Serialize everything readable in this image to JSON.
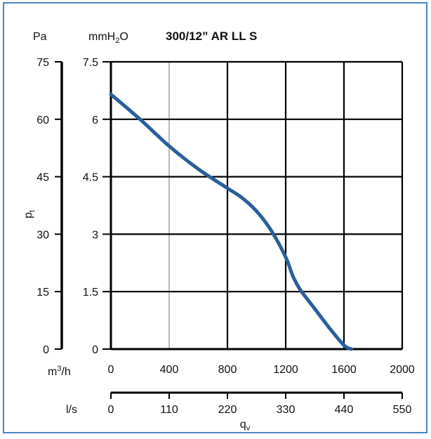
{
  "colors": {
    "frame": "#4a86c5",
    "curve": "#2a5e9c",
    "grid": "#000000",
    "thin_gridline": "#8a8a8a",
    "background": "#ffffff"
  },
  "chart_data": {
    "type": "line",
    "title": "300/12” AR LL S",
    "ylabel": "pt",
    "xlabel": "qv",
    "y_units_left": "Pa",
    "y_units_right": "mmH2O",
    "x_units_top": "m3/h",
    "x_units_bottom": "l/s",
    "xlim": [
      0,
      2000
    ],
    "ylim": [
      0,
      7.5
    ],
    "grid": true,
    "x_ticks_m3h": [
      "0",
      "400",
      "800",
      "1200",
      "1600",
      "2000"
    ],
    "x_ticks_ls": [
      "0",
      "110",
      "220",
      "330",
      "440",
      "550"
    ],
    "y_ticks_mmh2o": [
      "0",
      "1.5",
      "3",
      "4.5",
      "6",
      "7.5"
    ],
    "y_ticks_pa": [
      "0",
      "15",
      "30",
      "45",
      "60",
      "75"
    ],
    "series": [
      {
        "x": [
          0,
          200,
          400,
          600,
          800,
          900,
          1000,
          1100,
          1200,
          1250,
          1300,
          1400,
          1500,
          1600,
          1650
        ],
        "y": [
          6.65,
          6.0,
          5.3,
          4.7,
          4.2,
          3.95,
          3.6,
          3.1,
          2.4,
          1.9,
          1.55,
          1.05,
          0.55,
          0.1,
          0.0
        ]
      }
    ]
  }
}
